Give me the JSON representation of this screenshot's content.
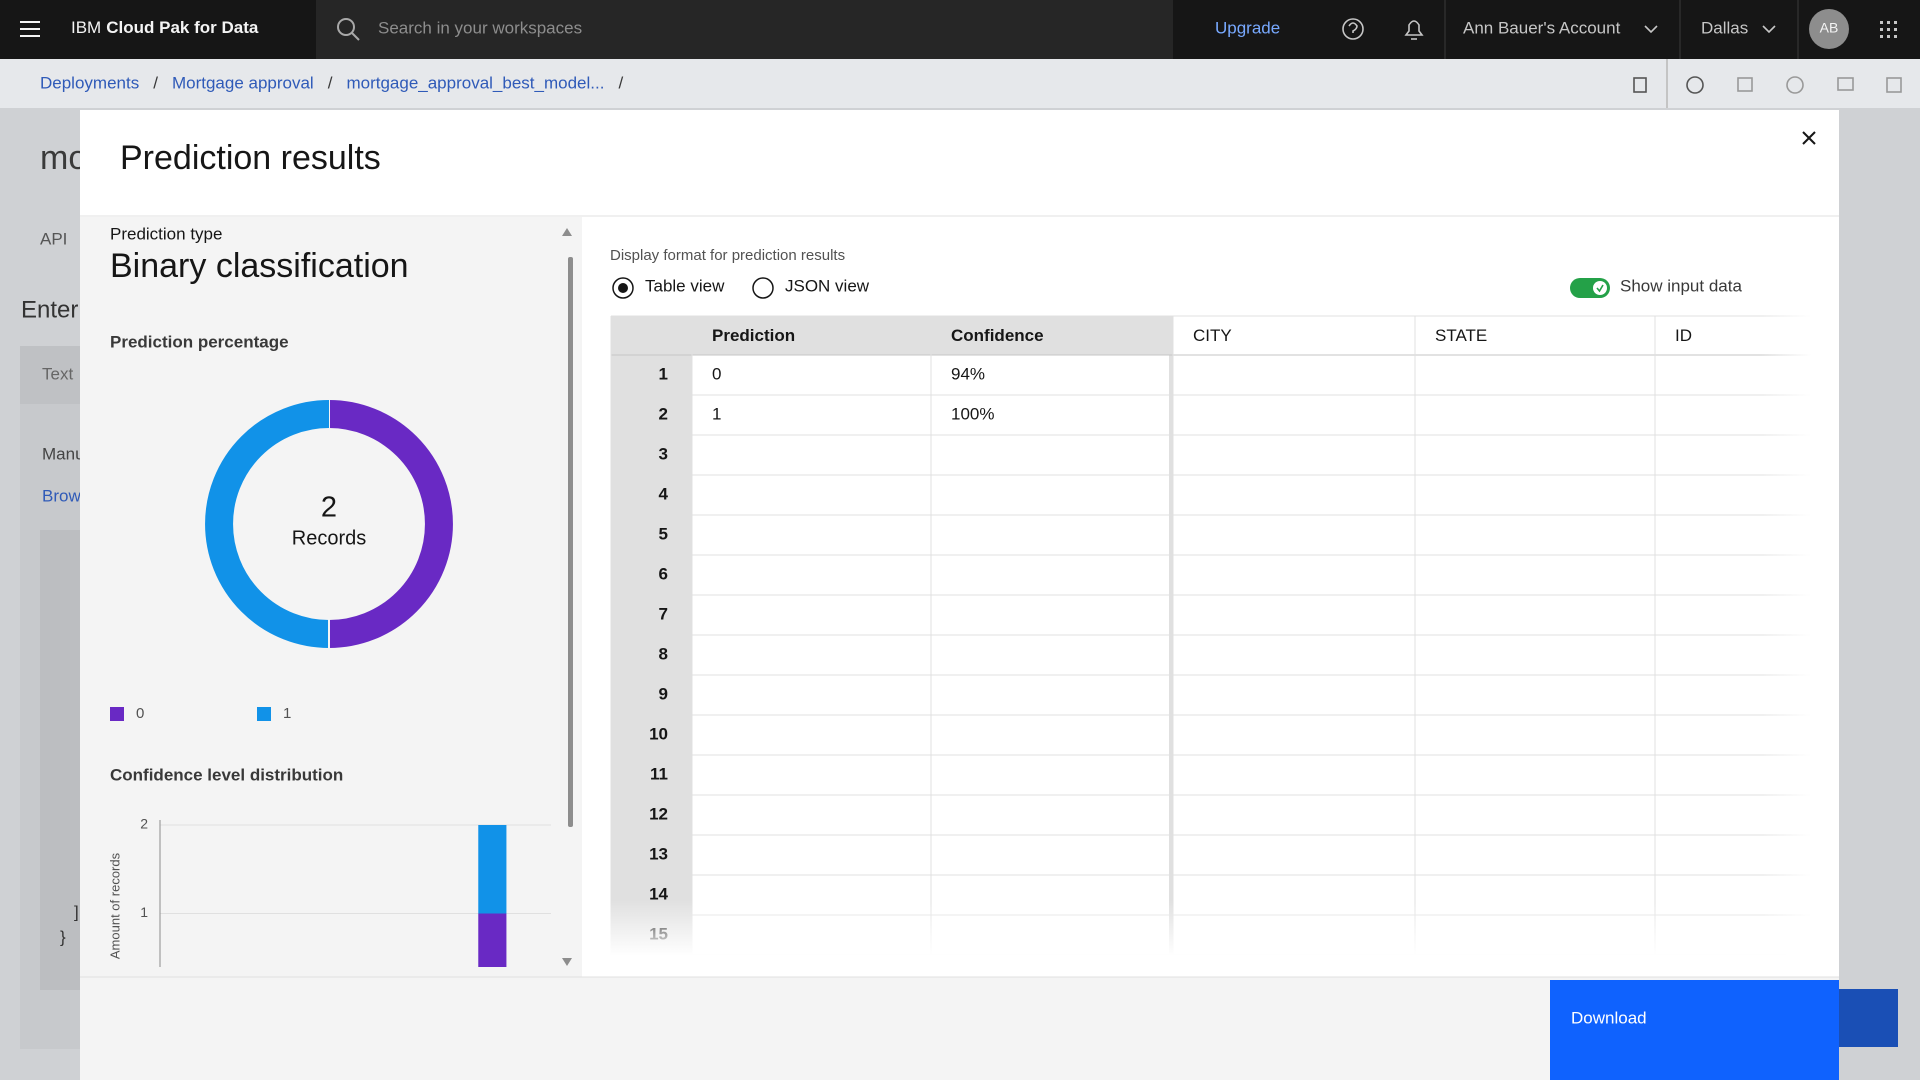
{
  "nav": {
    "brand_prefix": "IBM",
    "brand": "Cloud Pak for Data",
    "search_placeholder": "Search in your workspaces",
    "upgrade": "Upgrade",
    "account": "Ann Bauer's Account",
    "region": "Dallas",
    "avatar": "AB"
  },
  "breadcrumb": {
    "items": [
      "Deployments",
      "Mortgage approval",
      "mortgage_approval_best_model..."
    ],
    "separator": "/"
  },
  "background": {
    "title_fragment": "mo",
    "tab_fragment": "API",
    "section_fragment": "Enter",
    "input_tab_fragment": "Text",
    "label_fragment": "Manu",
    "link_fragment": "Brow",
    "code_fragments": [
      "]",
      "}"
    ]
  },
  "modal": {
    "title": "Prediction results",
    "prediction_type_label": "Prediction type",
    "prediction_type": "Binary classification",
    "display_format_label": "Display format for prediction results",
    "view_options": [
      "Table view",
      "JSON view"
    ],
    "selected_view": 0,
    "show_input_label": "Show input data",
    "show_input": true,
    "download": "Download"
  },
  "chart_data": [
    {
      "type": "donut",
      "title": "Prediction percentage",
      "categories": [
        "0",
        "1"
      ],
      "values": [
        1,
        1
      ],
      "colors": [
        "#6929c4",
        "#1192e8"
      ],
      "center_value": 2,
      "center_label": "Records"
    },
    {
      "type": "stacked_bar",
      "title": "Confidence level distribution",
      "y_label": "Amount of records",
      "categories": [
        null,
        null,
        null,
        null,
        null,
        null,
        null,
        null,
        null,
        null
      ],
      "series": [
        {
          "color": "#6929c4",
          "values": [
            0,
            0,
            0,
            0,
            0,
            0,
            0,
            0,
            1,
            0
          ]
        },
        {
          "color": "#1192e8",
          "values": [
            0,
            0,
            0,
            0,
            0,
            0,
            0,
            0,
            1,
            0
          ]
        }
      ],
      "ylim": [
        0,
        2
      ],
      "yticks": [
        1,
        2
      ],
      "grid": true
    }
  ],
  "table": {
    "prediction_columns": [
      "Prediction",
      "Confidence"
    ],
    "input_columns": [
      "CITY",
      "STATE",
      "ID"
    ],
    "row_numbers": [
      1,
      2,
      3,
      4,
      5,
      6,
      7,
      8,
      9,
      10,
      11,
      12,
      13,
      14,
      15
    ],
    "rows": [
      [
        "0",
        "94%"
      ],
      [
        "1",
        "100%"
      ]
    ]
  }
}
